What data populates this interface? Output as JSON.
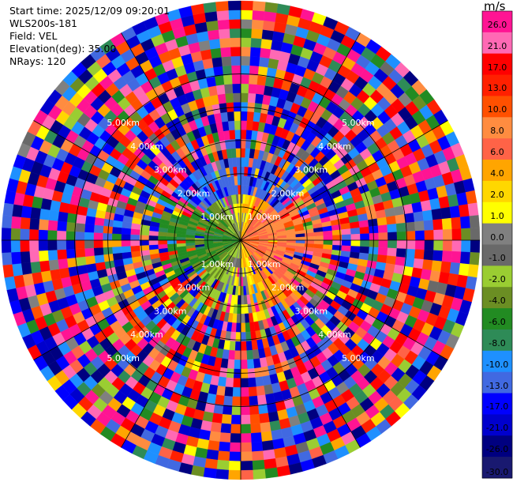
{
  "header": {
    "start_time": "Start time: 2025/12/09 09:20:01",
    "instrument": "WLS200s-181",
    "field": "Field: VEL",
    "elevation": "Elevation(deg): 35.00",
    "nrays": "NRays: 120"
  },
  "colorbar": {
    "unit": "m/s",
    "labels": [
      "26.0",
      "21.0",
      "17.0",
      "13.0",
      "10.0",
      "8.0",
      "6.0",
      "4.0",
      "2.0",
      "1.0",
      "0.0",
      "-1.0",
      "-2.0",
      "-4.0",
      "-6.0",
      "-8.0",
      "-10.0",
      "-13.0",
      "-17.0",
      "-21.0",
      "-26.0",
      "-30.0"
    ],
    "colors": [
      "#ff1493",
      "#ff69b4",
      "#ff0000",
      "#ff2000",
      "#ff5000",
      "#ff8c40",
      "#ff6347",
      "#ffa500",
      "#ffd700",
      "#ffff00",
      "#808080",
      "#696969",
      "#9acd32",
      "#6b8e23",
      "#228b22",
      "#2e8b57",
      "#1e90ff",
      "#4169e1",
      "#0000ff",
      "#0000cd",
      "#000080",
      "#191970"
    ]
  },
  "chart_data": {
    "type": "heatmap",
    "projection": "polar (PPI scan)",
    "field": "VEL",
    "unit": "m/s",
    "n_rays": 120,
    "elevation_deg": 35.0,
    "range_rings_km": [
      1.0,
      2.0,
      3.0,
      4.0,
      5.0
    ],
    "range_labels": [
      "1.00km",
      "2.00km",
      "3.00km",
      "4.00km",
      "5.00km"
    ],
    "max_range_km": 7.2,
    "value_range": [
      -30.0,
      26.0
    ],
    "pattern": "near field (< 2 km): approaching (green/blue) west, receding (yellow/orange/pink) east; beyond ~2.5 km noise-dominated random velocities"
  }
}
